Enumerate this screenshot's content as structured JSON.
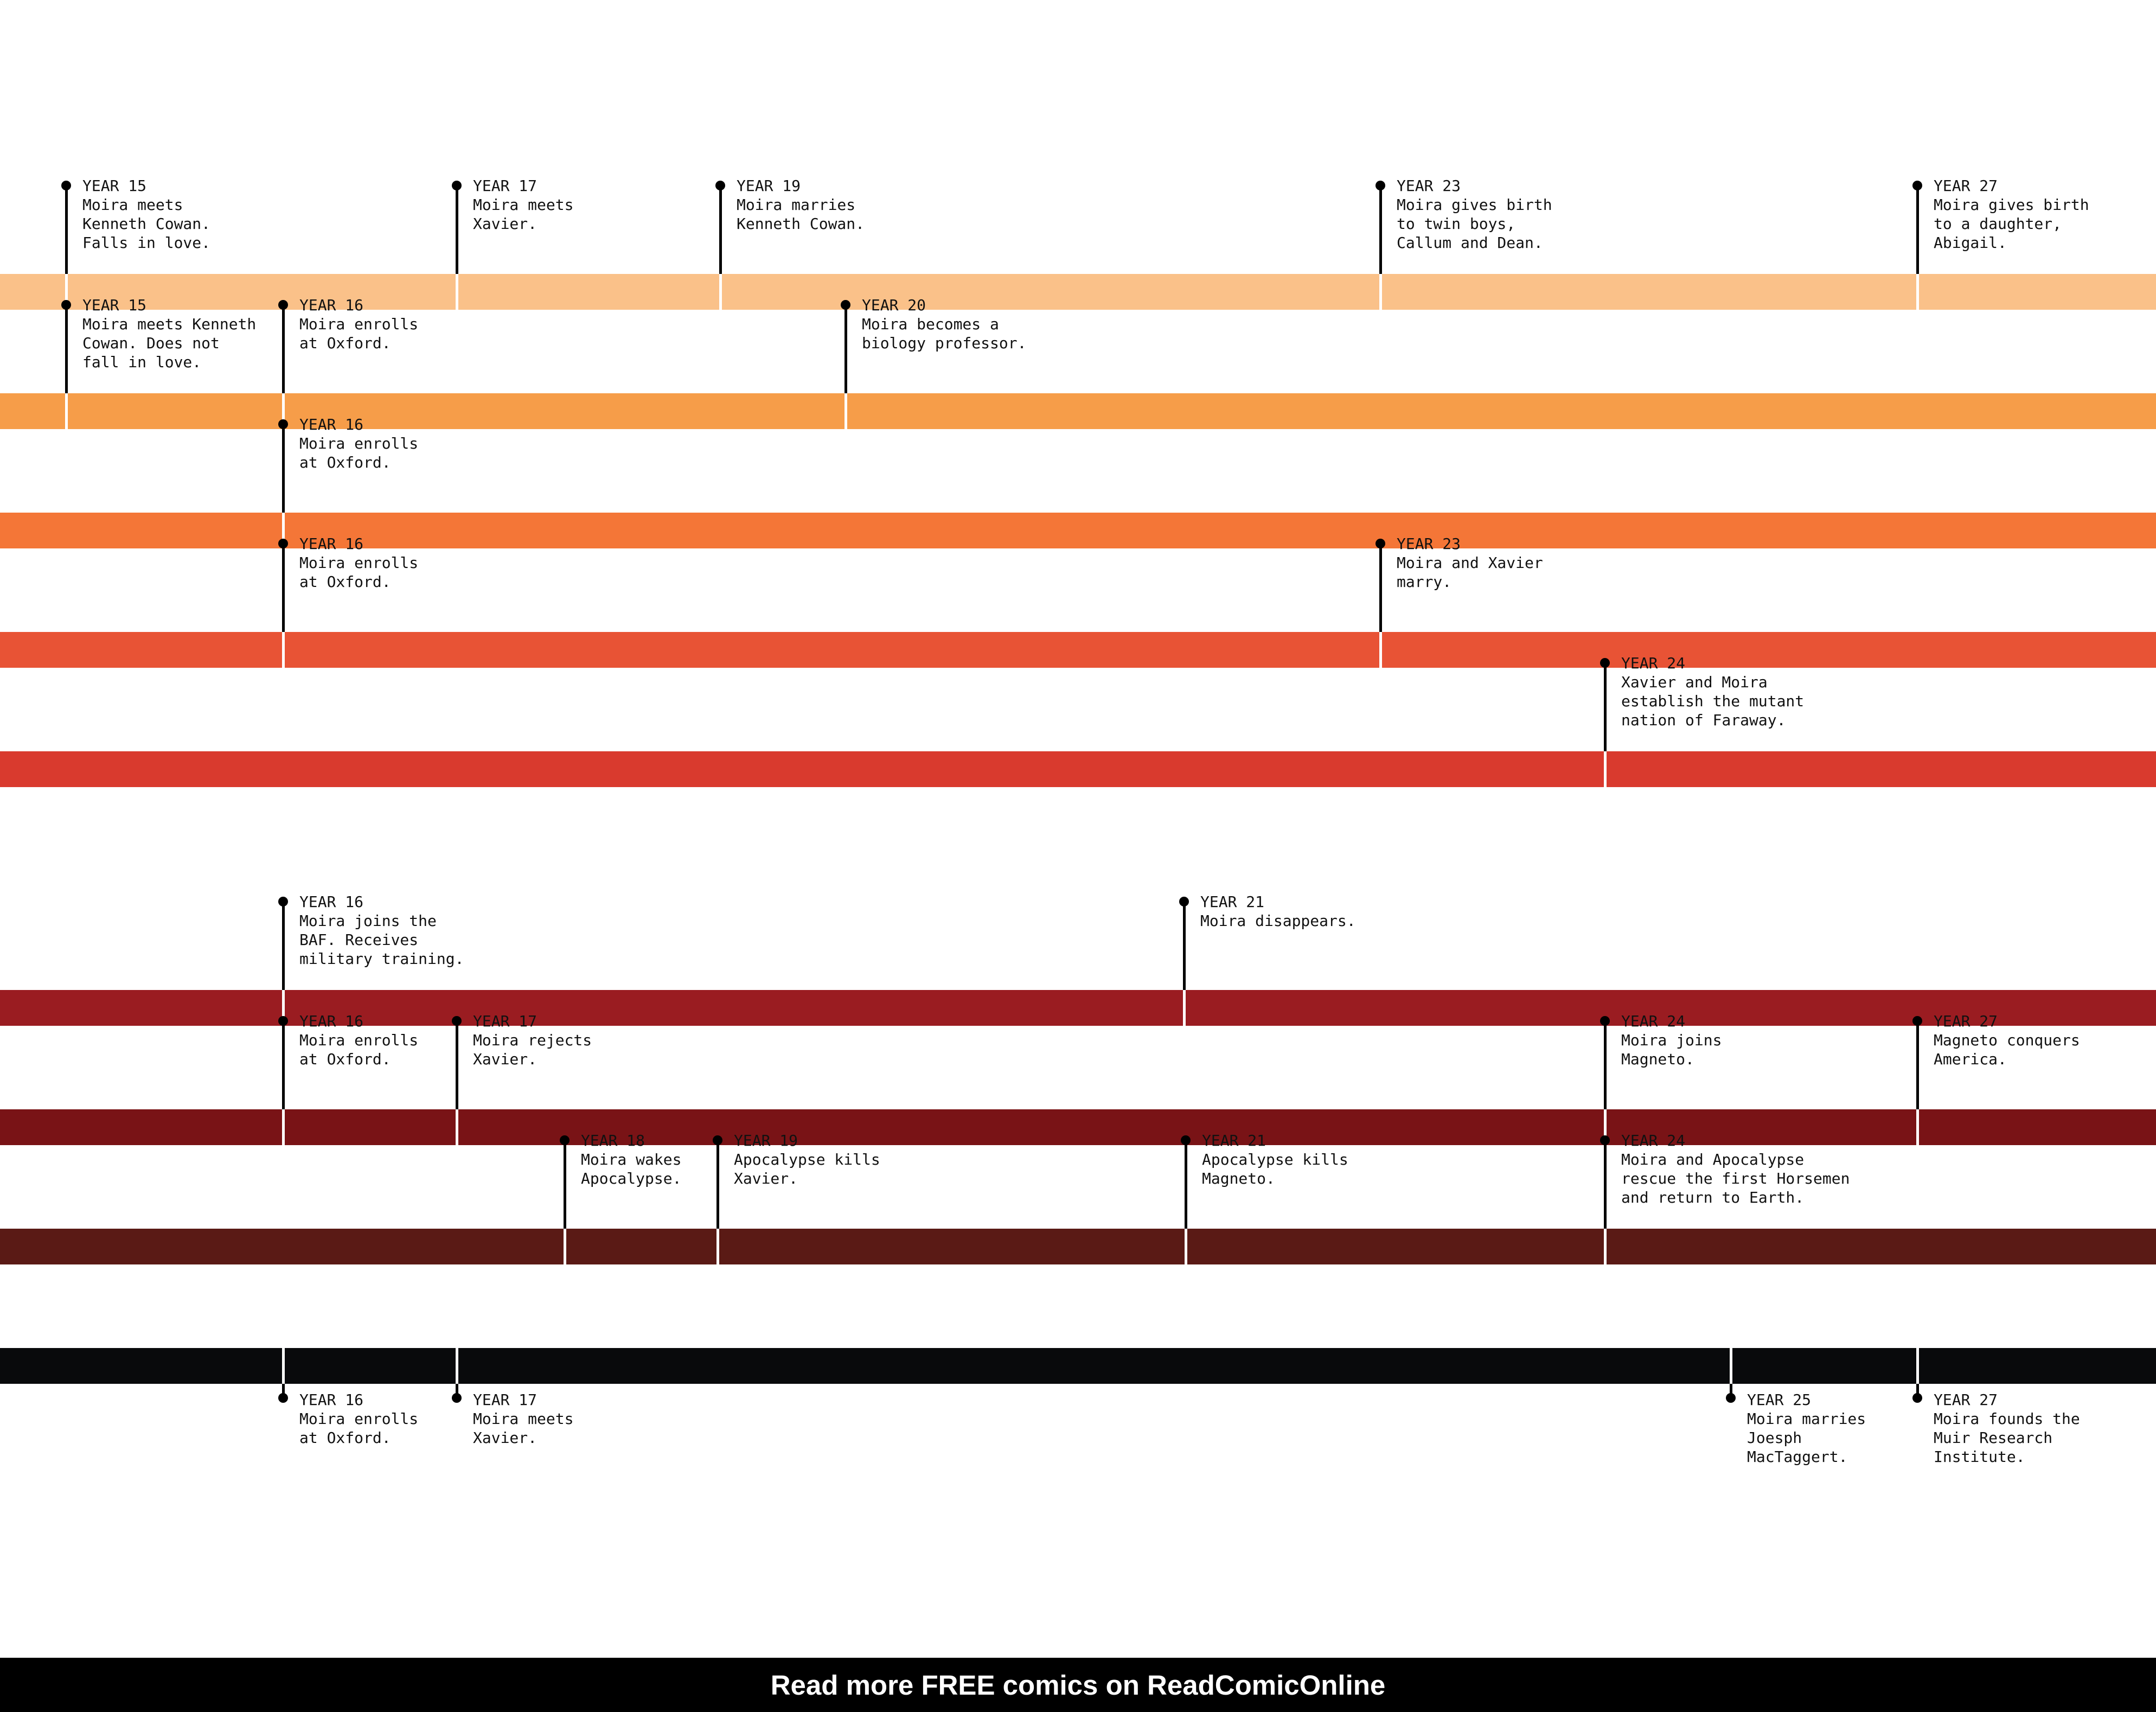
{
  "timelines": [
    {
      "color": "#FAC189",
      "events": [
        {
          "year": 15,
          "year_label": "YEAR 15",
          "text": "Moira meets\nKenneth Cowan.\nFalls in love."
        },
        {
          "year": 17,
          "year_label": "YEAR 17",
          "text": "Moira meets\nXavier."
        },
        {
          "year": 19,
          "year_label": "YEAR 19",
          "text": "Moira marries\nKenneth Cowan."
        },
        {
          "year": 23,
          "year_label": "YEAR 23",
          "text": "Moira gives birth\nto twin boys,\nCallum and Dean."
        },
        {
          "year": 27,
          "year_label": "YEAR 27",
          "text": "Moira gives birth\nto a daughter,\nAbigail."
        }
      ]
    },
    {
      "color": "#F69D49",
      "events": [
        {
          "year": 15,
          "year_label": "YEAR 15",
          "text": "Moira meets Kenneth\nCowan. Does not\nfall in love."
        },
        {
          "year": 16,
          "year_label": "YEAR 16",
          "text": "Moira enrolls\nat Oxford."
        },
        {
          "year": 20,
          "year_label": "YEAR 20",
          "text": "Moira becomes a\nbiology professor."
        }
      ]
    },
    {
      "color": "#F47637",
      "events": [
        {
          "year": 16,
          "year_label": "YEAR 16",
          "text": "Moira enrolls\nat Oxford."
        }
      ]
    },
    {
      "color": "#E85335",
      "events": [
        {
          "year": 16,
          "year_label": "YEAR 16",
          "text": "Moira enrolls\nat Oxford."
        },
        {
          "year": 23,
          "year_label": "YEAR 23",
          "text": "Moira and Xavier\nmarry."
        }
      ]
    },
    {
      "color": "#D93A2E",
      "events": [
        {
          "year": 24,
          "year_label": "YEAR 24",
          "text": "Xavier and Moira\nestablish the mutant\nnation of Faraway."
        }
      ]
    },
    {
      "color": "#9A1C21",
      "events": [
        {
          "year": 16,
          "year_label": "YEAR 16",
          "text": "Moira joins the\nBAF. Receives\nmilitary training."
        },
        {
          "year": 21,
          "year_label": "YEAR 21",
          "text": "Moira disappears."
        }
      ]
    },
    {
      "color": "#791316",
      "events": [
        {
          "year": 16,
          "year_label": "YEAR 16",
          "text": "Moira enrolls\nat Oxford."
        },
        {
          "year": 17,
          "year_label": "YEAR 17",
          "text": "Moira rejects\nXavier."
        },
        {
          "year": 24,
          "year_label": "YEAR 24",
          "text": "Moira joins\nMagneto."
        },
        {
          "year": 27,
          "year_label": "YEAR 27",
          "text": "Magneto conquers\nAmerica."
        }
      ]
    },
    {
      "color": "#5A1A15",
      "events": [
        {
          "year": 18,
          "year_label": "YEAR 18",
          "text": "Moira wakes\nApocalypse."
        },
        {
          "year": 19,
          "year_label": "YEAR 19",
          "text": "Apocalypse kills\nXavier."
        },
        {
          "year": 21,
          "year_label": "YEAR 21",
          "text": "Apocalypse kills\nMagneto."
        },
        {
          "year": 24,
          "year_label": "YEAR 24",
          "text": "Moira and Apocalypse\nrescue the first Horsemen\nand return to Earth."
        }
      ]
    },
    {
      "color": "#090A0C",
      "labels_below": true,
      "events": [
        {
          "year": 16,
          "year_label": "YEAR 16",
          "text": "Moira enrolls\nat Oxford."
        },
        {
          "year": 17,
          "year_label": "YEAR 17",
          "text": "Moira meets\nXavier."
        },
        {
          "year": 25,
          "year_label": "YEAR 25",
          "text": "Moira marries\nJoesph\nMacTaggert."
        },
        {
          "year": 27,
          "year_label": "YEAR 27",
          "text": "Moira founds the\nMuir Research\nInstitute."
        }
      ]
    }
  ],
  "footer": {
    "text": "Read more FREE comics on ReadComicOnline"
  }
}
